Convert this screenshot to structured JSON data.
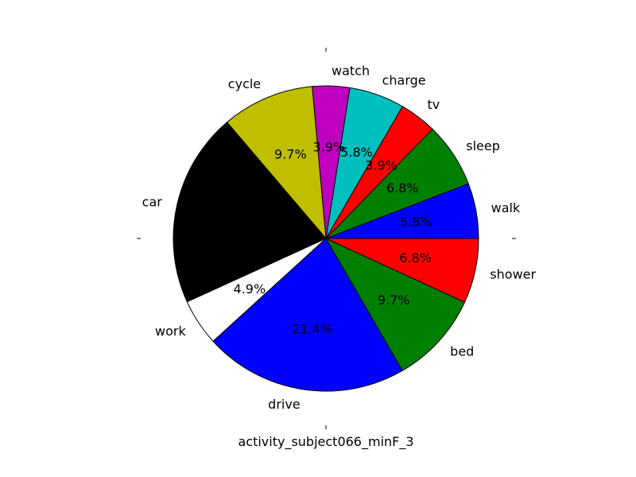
{
  "chart_data": {
    "type": "pie",
    "title": "",
    "xlabel": "activity_subject066_minF_3",
    "ylabel": "",
    "legend": "none",
    "grid": false,
    "start_angle_deg": 0,
    "direction": "counterclockwise",
    "slices": [
      {
        "label": "walk",
        "value": 5.8,
        "pct_label": "5.8%",
        "color": "#0000ff"
      },
      {
        "label": "sleep",
        "value": 6.8,
        "pct_label": "6.8%",
        "color": "#008000"
      },
      {
        "label": "tv",
        "value": 3.9,
        "pct_label": "3.9%",
        "color": "#ff0000"
      },
      {
        "label": "charge",
        "value": 5.8,
        "pct_label": "5.8%",
        "color": "#00bfbf"
      },
      {
        "label": "watch",
        "value": 3.9,
        "pct_label": "3.9%",
        "color": "#bf00bf"
      },
      {
        "label": "cycle",
        "value": 9.7,
        "pct_label": "9.7%",
        "color": "#bfbf00"
      },
      {
        "label": "car",
        "value": 20.4,
        "pct_label": "",
        "color": "#000000"
      },
      {
        "label": "work",
        "value": 4.9,
        "pct_label": "4.9%",
        "color": "#ffffff"
      },
      {
        "label": "drive",
        "value": 21.4,
        "pct_label": "21.4%",
        "color": "#0000ff"
      },
      {
        "label": "bed",
        "value": 9.7,
        "pct_label": "9.7%",
        "color": "#008000"
      },
      {
        "label": "shower",
        "value": 6.8,
        "pct_label": "6.8%",
        "color": "#ff0000"
      }
    ]
  }
}
